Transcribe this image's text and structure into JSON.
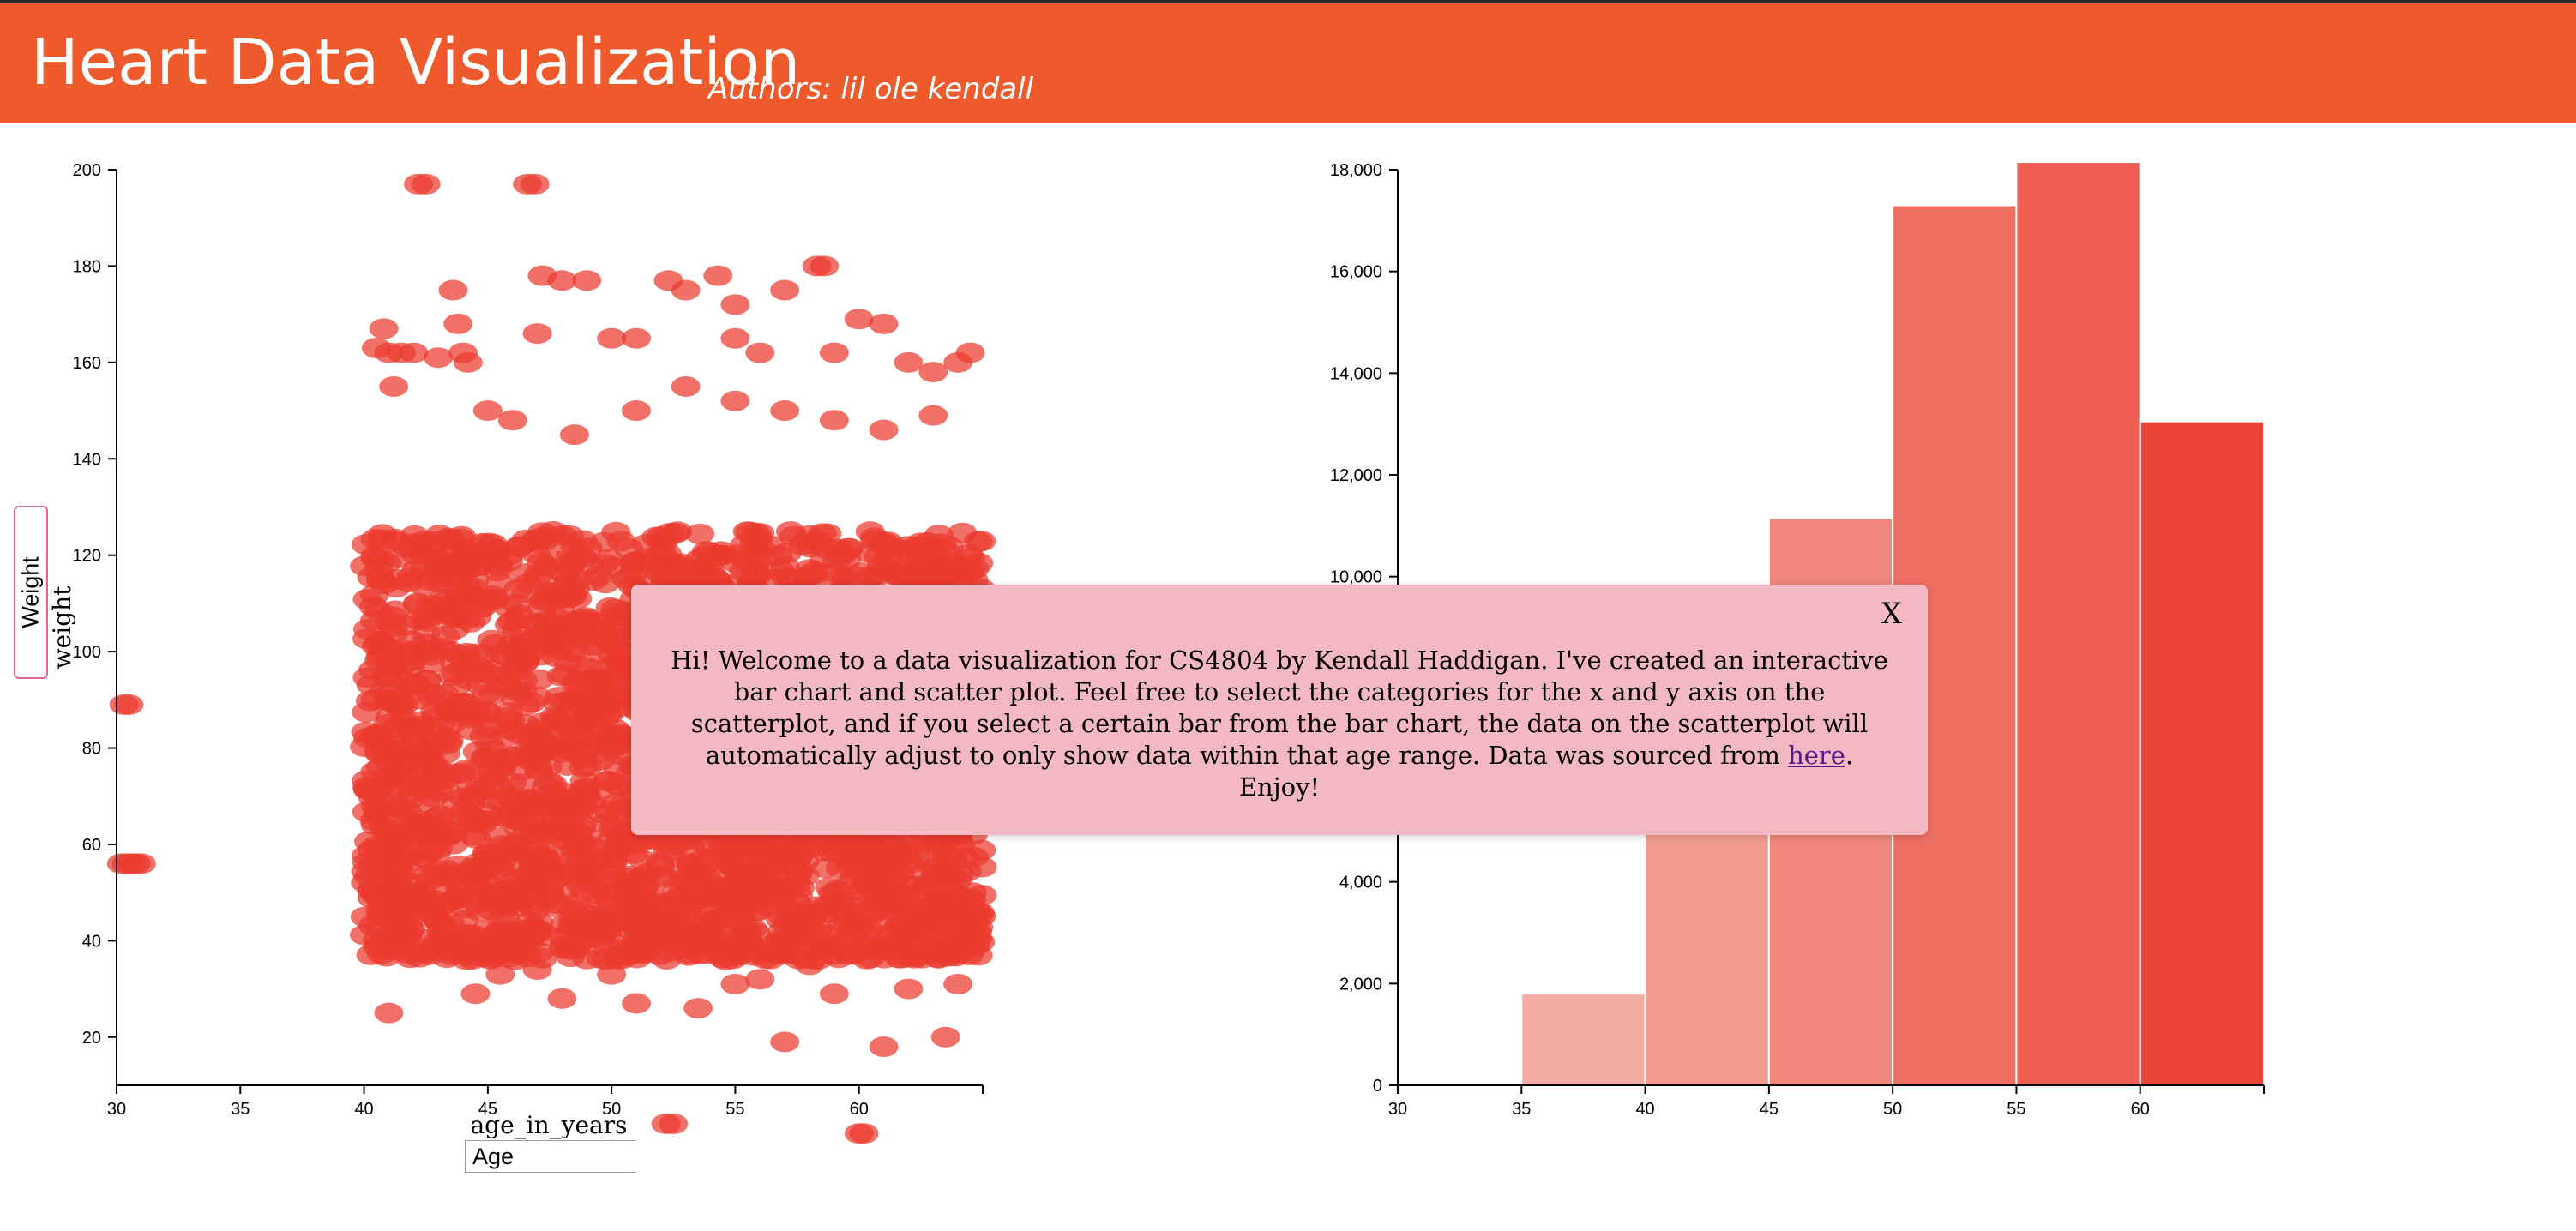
{
  "header": {
    "title": "Heart Data Visualization",
    "authors": "Authors: lil ole kendall"
  },
  "scatter": {
    "y_select_value": "Weight",
    "x_select_value": "Age",
    "y_axis_title": "weight",
    "x_axis_title": "age_in_years",
    "chart_data": {
      "type": "scatter",
      "xlabel": "age_in_years",
      "ylabel": "weight",
      "xlim": [
        30,
        65
      ],
      "ylim": [
        10,
        200
      ],
      "x_ticks": [
        "30",
        "35",
        "40",
        "45",
        "50",
        "55",
        "60"
      ],
      "y_ticks": [
        "20",
        "40",
        "60",
        "80",
        "100",
        "120",
        "140",
        "160",
        "180",
        "200"
      ],
      "point_color": "#ec3a2e",
      "points": [
        [
          30.3,
          89
        ],
        [
          30.5,
          89
        ],
        [
          30.4,
          56
        ],
        [
          30.6,
          56
        ],
        [
          30.8,
          56
        ],
        [
          31.0,
          56
        ],
        [
          30.2,
          56
        ],
        [
          41.0,
          25
        ],
        [
          42.2,
          197
        ],
        [
          42.5,
          197
        ],
        [
          46.6,
          197
        ],
        [
          46.9,
          197
        ],
        [
          44.2,
          160
        ],
        [
          43.6,
          175
        ],
        [
          47.2,
          178
        ],
        [
          48.0,
          177
        ],
        [
          49.0,
          177
        ],
        [
          52.3,
          177
        ],
        [
          54.3,
          178
        ],
        [
          57.0,
          175
        ],
        [
          58.3,
          180
        ],
        [
          58.6,
          180
        ],
        [
          55.0,
          172
        ],
        [
          53.0,
          175
        ],
        [
          60.0,
          169
        ],
        [
          61.0,
          168
        ],
        [
          47.0,
          166
        ],
        [
          50.0,
          165
        ],
        [
          51.0,
          165
        ],
        [
          55.0,
          165
        ],
        [
          56.0,
          162
        ],
        [
          59.0,
          162
        ],
        [
          62.0,
          160
        ],
        [
          63.0,
          158
        ],
        [
          64.0,
          160
        ],
        [
          64.5,
          162
        ],
        [
          41.0,
          162
        ],
        [
          41.5,
          162
        ],
        [
          42.0,
          162
        ],
        [
          43.0,
          161
        ],
        [
          44.0,
          162
        ],
        [
          40.5,
          163
        ],
        [
          40.8,
          167
        ],
        [
          41.2,
          155
        ],
        [
          43.8,
          168
        ],
        [
          45.0,
          150
        ],
        [
          46.0,
          148
        ],
        [
          48.5,
          145
        ],
        [
          51.0,
          150
        ],
        [
          53.0,
          155
        ],
        [
          55.0,
          152
        ],
        [
          57.0,
          150
        ],
        [
          59.0,
          148
        ],
        [
          61.0,
          146
        ],
        [
          63.0,
          149
        ],
        [
          48.0,
          28
        ],
        [
          51.0,
          27
        ],
        [
          53.5,
          26
        ],
        [
          44.5,
          29
        ],
        [
          55.0,
          31
        ],
        [
          59.0,
          29
        ],
        [
          62.0,
          30
        ],
        [
          64.0,
          31
        ],
        [
          61.0,
          18
        ],
        [
          57.0,
          19
        ],
        [
          63.5,
          20
        ],
        [
          52.2,
          2
        ],
        [
          52.5,
          2
        ],
        [
          60.0,
          0
        ],
        [
          60.2,
          0
        ],
        [
          45.5,
          33
        ],
        [
          47.0,
          34
        ],
        [
          50.0,
          33
        ],
        [
          56.0,
          32
        ],
        [
          58.0,
          35
        ]
      ],
      "dense_region": {
        "x_range": [
          40,
          65
        ],
        "y_range": [
          36,
          125
        ],
        "count": 2600,
        "seed": 42
      }
    }
  },
  "bar": {
    "chart_data": {
      "type": "bar",
      "xlim": [
        30,
        65
      ],
      "ylim": [
        0,
        18000
      ],
      "x_ticks": [
        "30",
        "35",
        "40",
        "45",
        "50",
        "55",
        "60"
      ],
      "y_ticks": [
        "0",
        "2,000",
        "4,000",
        "6,000",
        "8,000",
        "10,000",
        "12,000",
        "14,000",
        "16,000",
        "18,000"
      ],
      "bins": [
        {
          "x0": 35,
          "x1": 40,
          "value": 1800,
          "color": "#f5aca3"
        },
        {
          "x0": 40,
          "x1": 45,
          "value": 5600,
          "color": "#f39c8f"
        },
        {
          "x0": 45,
          "x1": 50,
          "value": 11150,
          "color": "#f1877a"
        },
        {
          "x0": 50,
          "x1": 55,
          "value": 17300,
          "color": "#ef6f63"
        },
        {
          "x0": 55,
          "x1": 60,
          "value": 18150,
          "color": "#ee5c52"
        },
        {
          "x0": 60,
          "x1": 65,
          "value": 13050,
          "color": "#ec4436"
        }
      ]
    }
  },
  "modal": {
    "close_label": "X",
    "text_before": "Hi! Welcome to a data visualization for CS4804 by Kendall Haddigan. I've created an interactive bar chart and scatter plot. Feel free to select the categories for the x and y axis on the scatterplot, and if you select a certain bar from the bar chart, the data on the scatterplot will automatically adjust to only show data within that age range. Data was sourced from ",
    "link_text": "here",
    "text_after": ". Enjoy!"
  }
}
